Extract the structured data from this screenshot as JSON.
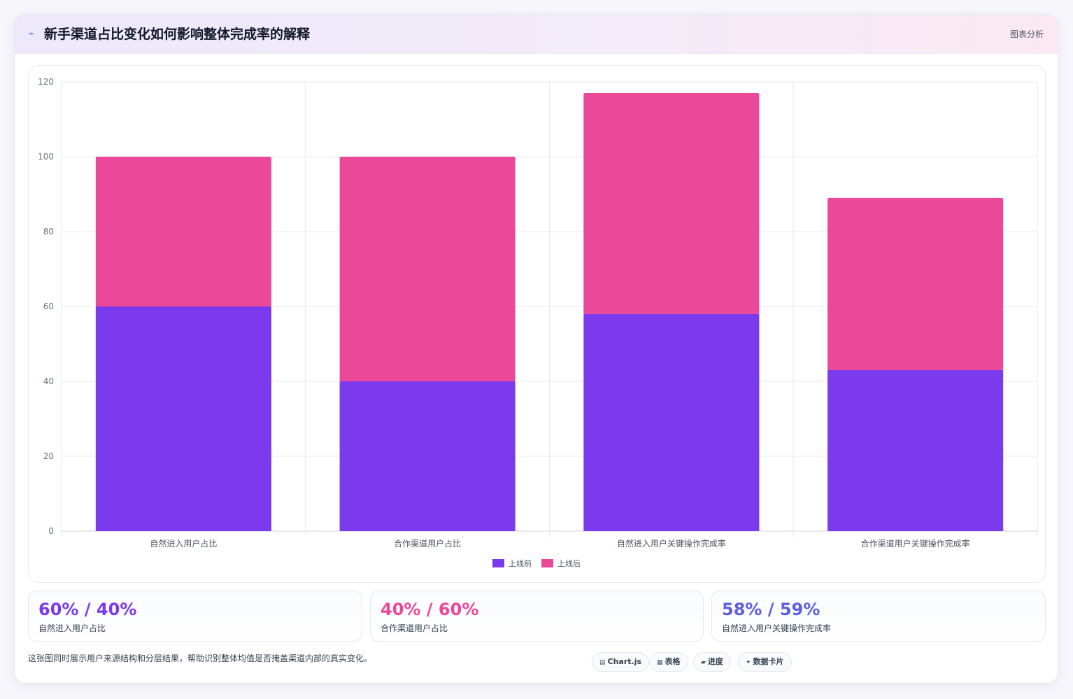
{
  "header": {
    "icon": "trend-line-icon",
    "title": "新手渠道占比变化如何影响整体完成率的解释",
    "tag": "图表分析"
  },
  "chart_data": {
    "type": "bar",
    "stacked": true,
    "categories": [
      "自然进入用户占比",
      "合作渠道用户占比",
      "自然进入用户关键操作完成率",
      "合作渠道用户关键操作完成率"
    ],
    "series": [
      {
        "name": "上线前",
        "values": [
          60,
          40,
          58,
          43
        ],
        "color": "#7c3aed"
      },
      {
        "name": "上线后",
        "values": [
          40,
          60,
          59,
          46
        ],
        "color": "#ec4899"
      }
    ],
    "ylim": [
      0,
      120
    ],
    "yticks": [
      0,
      20,
      40,
      60,
      80,
      100,
      120
    ],
    "grid": true,
    "legend": "bottom"
  },
  "stats": [
    {
      "value": "60% / 40%",
      "label": "自然进入用户占比",
      "color": "#7c3aed"
    },
    {
      "value": "40% / 60%",
      "label": "合作渠道用户占比",
      "color": "#ec4899"
    },
    {
      "value": "58% / 59%",
      "label": "自然进入用户关键操作完成率",
      "color": "#5b5fe0"
    }
  ],
  "footnote": "这张图同时展示用户来源结构和分层结果，帮助识别整体均值是否掩盖渠道内部的真实变化。",
  "pills": [
    {
      "glyph": "▤",
      "label": "Chart.js",
      "icon": "chart-icon"
    },
    {
      "glyph": "▦",
      "label": "表格",
      "icon": "table-icon"
    },
    {
      "glyph": "▰",
      "label": "进度",
      "icon": "progress-icon"
    },
    {
      "glyph": "✦",
      "label": "数据卡片",
      "icon": "card-icon"
    }
  ]
}
